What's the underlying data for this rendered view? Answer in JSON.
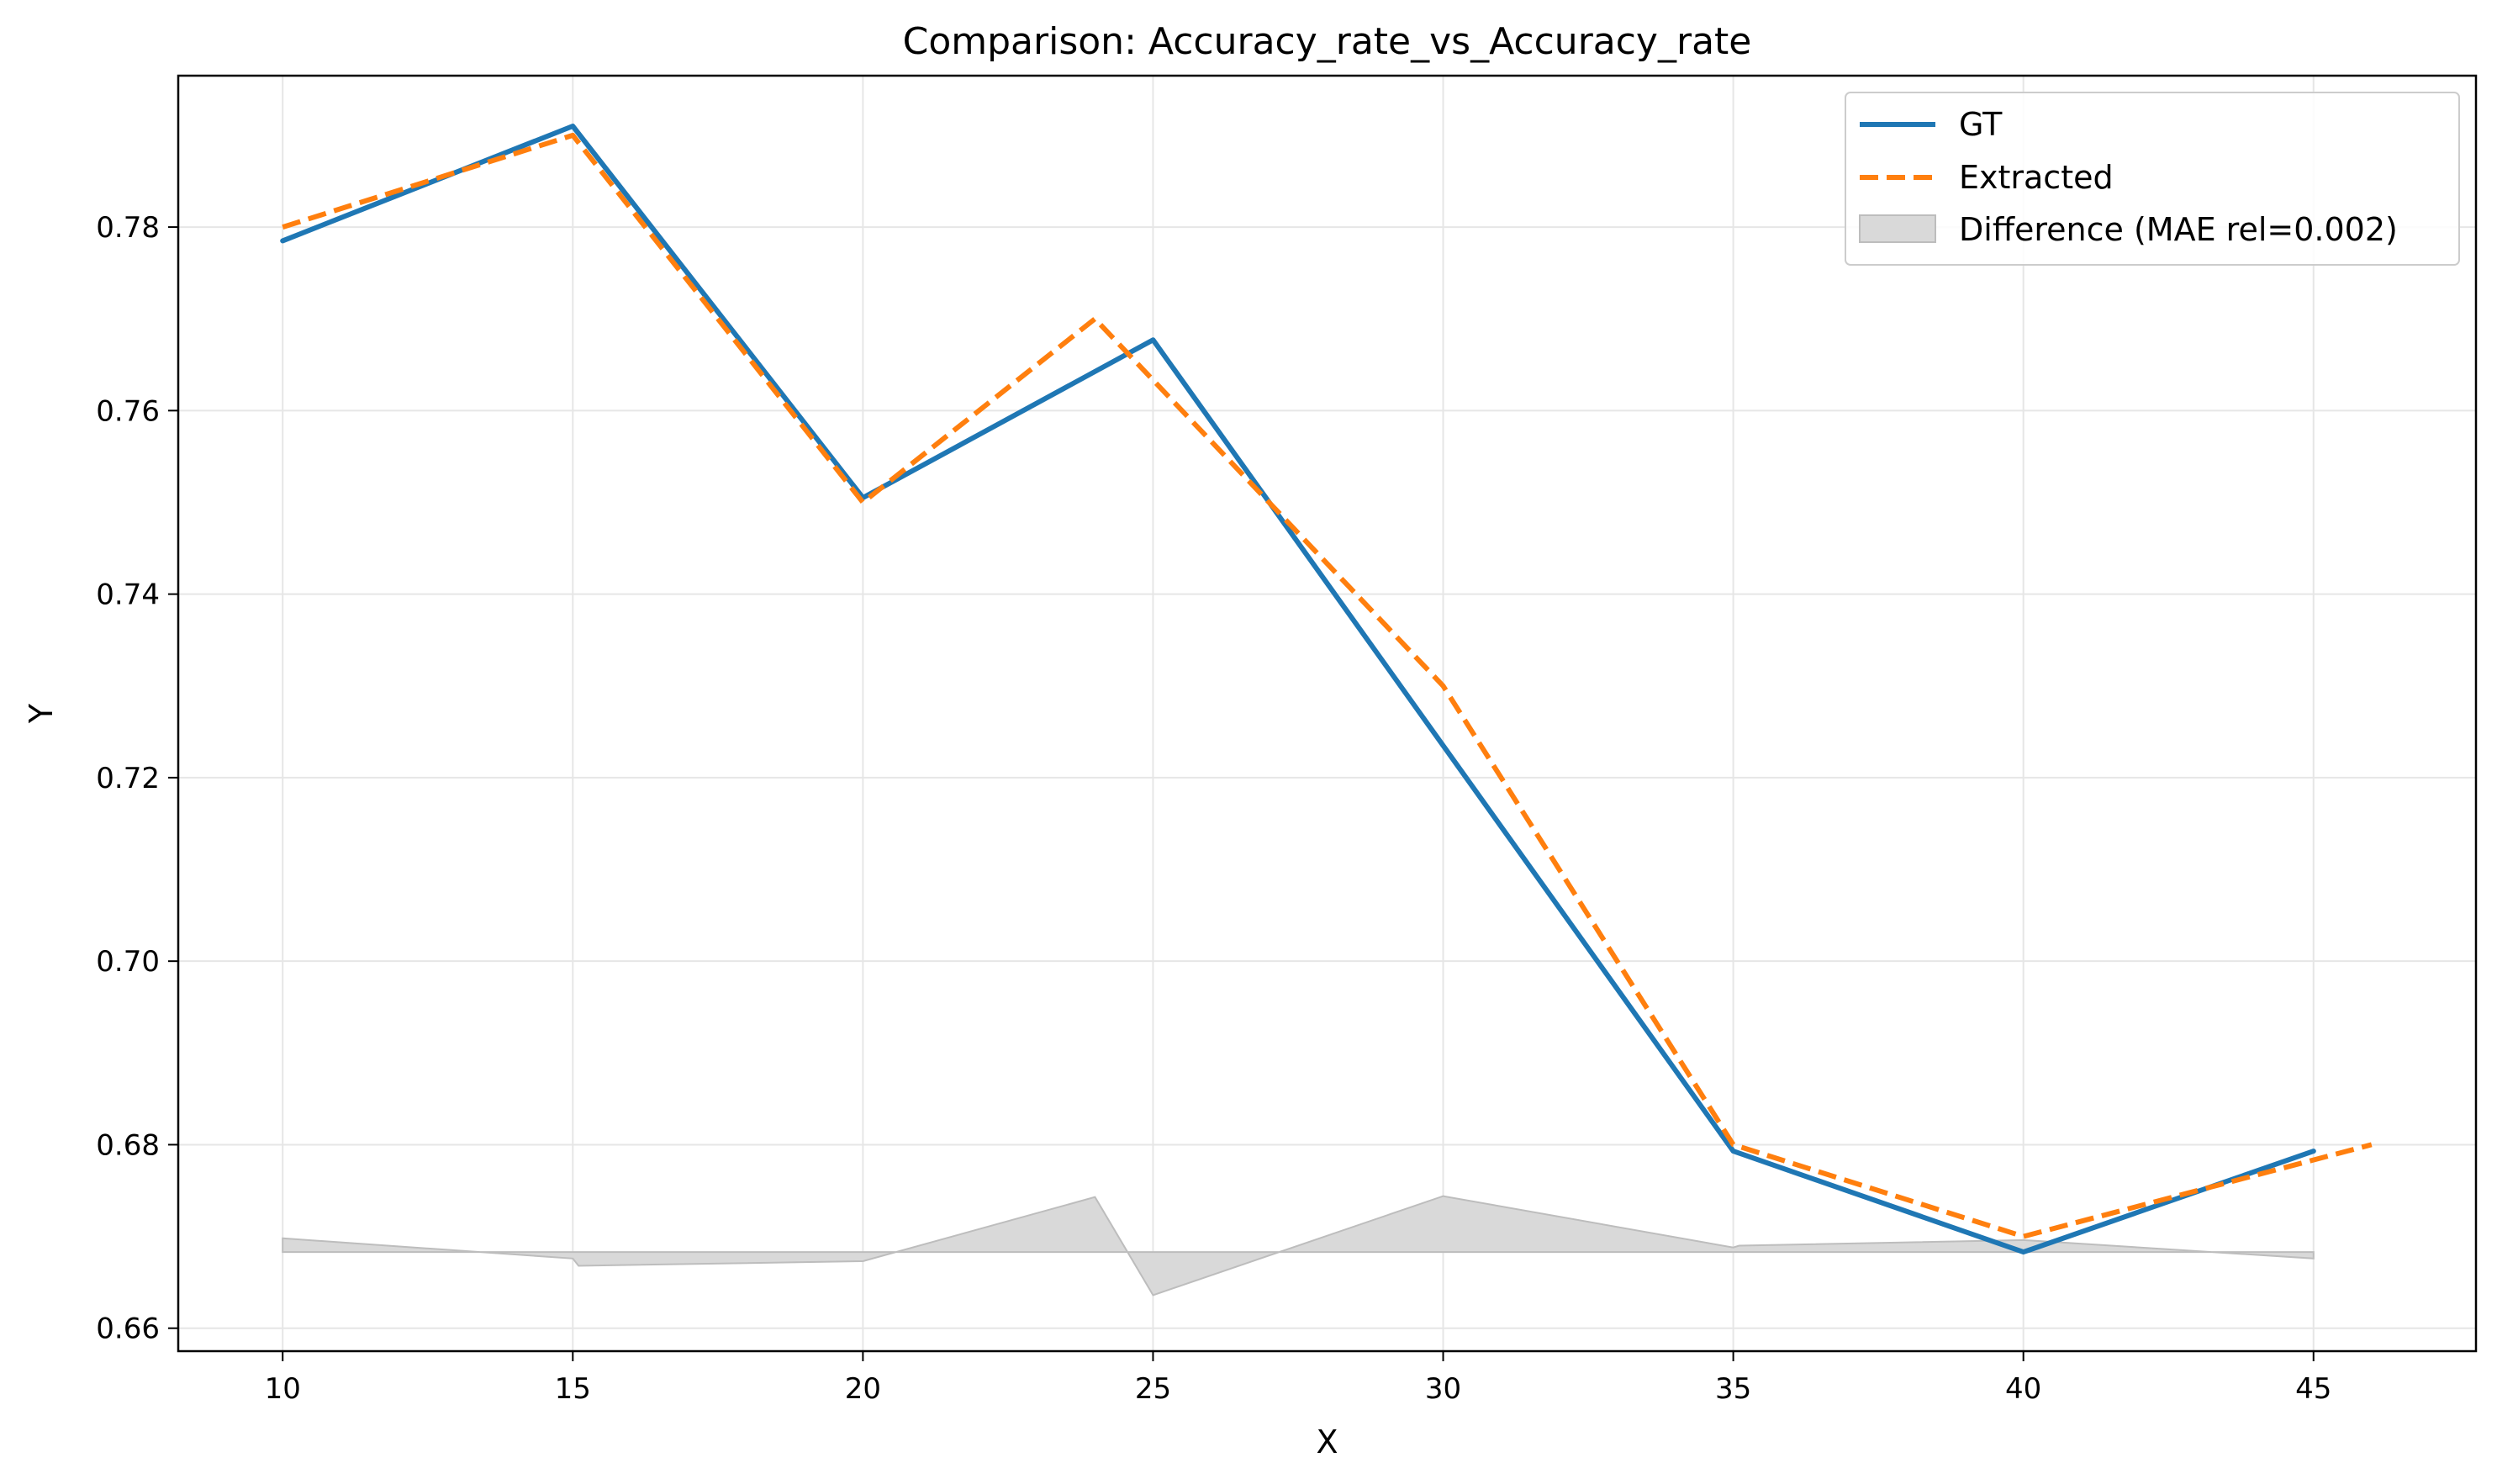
{
  "chart_data": {
    "type": "line",
    "title": "Comparison: Accuracy_rate_vs_Accuracy_rate",
    "xlabel": "X",
    "ylabel": "Y",
    "xlim": [
      8.2,
      47.8
    ],
    "ylim": [
      0.6575,
      0.7965
    ],
    "x_ticks": [
      10,
      15,
      20,
      25,
      30,
      35,
      40,
      45
    ],
    "y_ticks": [
      0.66,
      0.68,
      0.7,
      0.72,
      0.74,
      0.76,
      0.78
    ],
    "grid": true,
    "legend_position": "top-right",
    "series": [
      {
        "name": "GT",
        "color": "#1f77b4",
        "style": "solid",
        "x": [
          10,
          15,
          20,
          25,
          30,
          35,
          40,
          45
        ],
        "y": [
          0.7785,
          0.791,
          0.7505,
          0.7677,
          0.7235,
          0.6793,
          0.6683,
          0.6793
        ]
      },
      {
        "name": "Extracted",
        "color": "#ff7f0e",
        "style": "dashed",
        "x": [
          10,
          15,
          20,
          24,
          30,
          35,
          40,
          46
        ],
        "y": [
          0.78,
          0.79,
          0.75,
          0.77,
          0.73,
          0.68,
          0.67,
          0.68
        ]
      }
    ],
    "difference": {
      "name": "Difference (MAE rel=0.002)",
      "color": "#d9d9d9",
      "baseline": 0.6683,
      "x": [
        10,
        15,
        15.1,
        20,
        24,
        25,
        30,
        35,
        35.1,
        40,
        45
      ],
      "y": [
        0.6698,
        0.6676,
        0.6668,
        0.6673,
        0.6743,
        0.6636,
        0.6744,
        0.6688,
        0.669,
        0.6696,
        0.6676
      ]
    }
  }
}
